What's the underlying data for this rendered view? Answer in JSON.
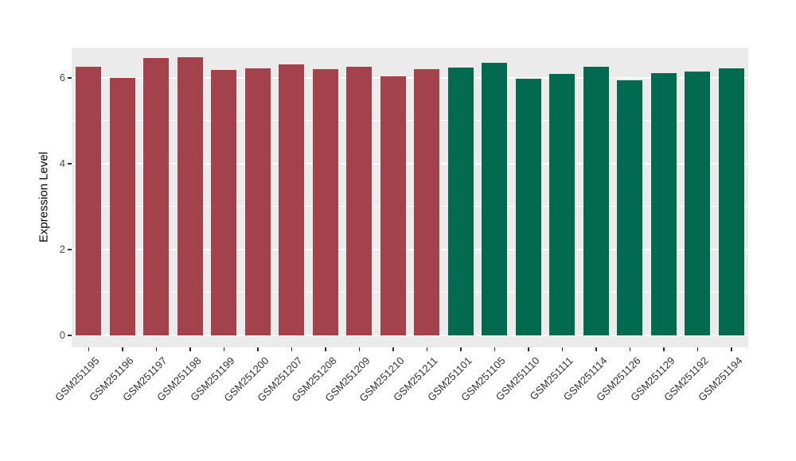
{
  "chart_data": {
    "type": "bar",
    "title": "",
    "xlabel": "",
    "ylabel": "Expression Level",
    "categories": [
      "GSM251195",
      "GSM251196",
      "GSM251197",
      "GSM251198",
      "GSM251199",
      "GSM251200",
      "GSM251207",
      "GSM251208",
      "GSM251209",
      "GSM251210",
      "GSM251211",
      "GSM251101",
      "GSM251105",
      "GSM251110",
      "GSM251111",
      "GSM251114",
      "GSM251126",
      "GSM251129",
      "GSM251192",
      "GSM251194"
    ],
    "values": [
      6.26,
      6.0,
      6.46,
      6.48,
      6.19,
      6.22,
      6.31,
      6.2,
      6.26,
      6.04,
      6.2,
      6.24,
      6.35,
      5.98,
      6.09,
      6.26,
      5.94,
      6.11,
      6.15,
      6.22
    ],
    "bar_colors": [
      "#A3424A",
      "#A3424A",
      "#A3424A",
      "#A3424A",
      "#A3424A",
      "#A3424A",
      "#A3424A",
      "#A3424A",
      "#A3424A",
      "#A3424A",
      "#A3424A",
      "#016A4F",
      "#016A4F",
      "#016A4F",
      "#016A4F",
      "#016A4F",
      "#016A4F",
      "#016A4F",
      "#016A4F",
      "#016A4F"
    ],
    "group_colors": {
      "left_group": "#A3424A",
      "right_group": "#016A4F"
    },
    "ylim": [
      0,
      6.7
    ],
    "yticks": [
      0,
      2,
      4,
      6
    ],
    "minor_ticks": [
      1,
      3,
      5
    ],
    "grid": true,
    "panel_bg": "#EBEBEB",
    "legend_position": "none"
  }
}
